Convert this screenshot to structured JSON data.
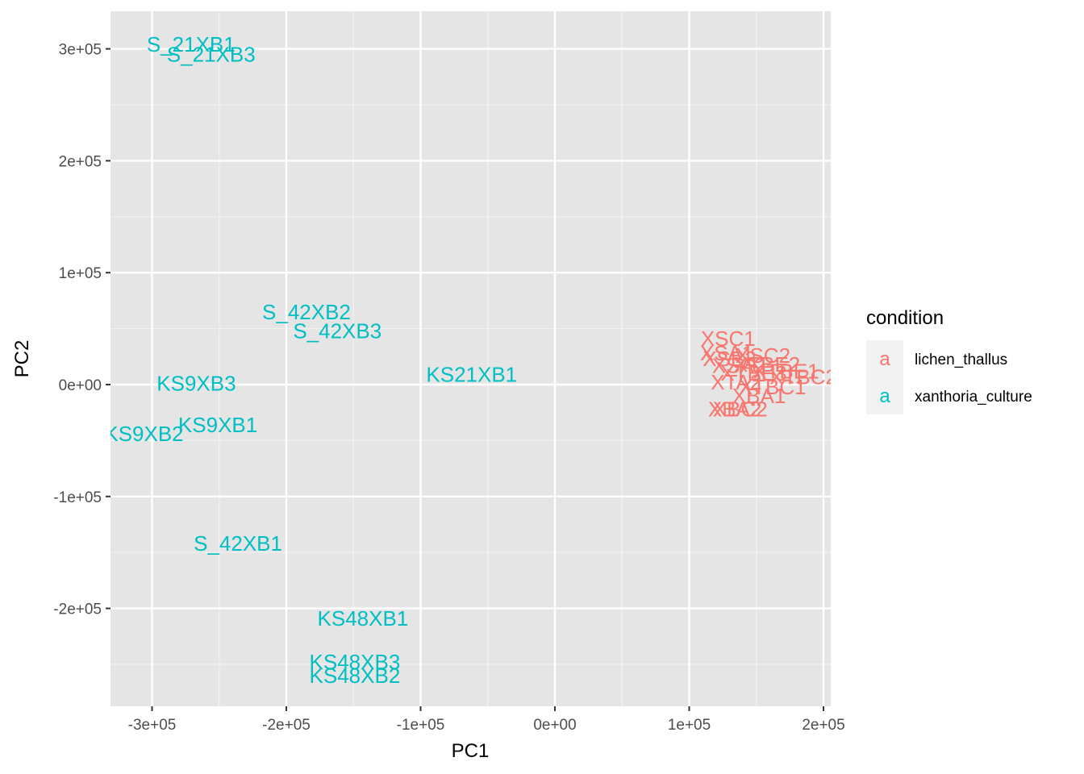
{
  "chart_data": {
    "type": "scatter",
    "title": "",
    "xlabel": "PC1",
    "ylabel": "PC2",
    "xlim": [
      -332000,
      1010000
    ],
    "ylim": [
      -287000,
      330000
    ],
    "x_ticks": [
      {
        "value": -300000,
        "label": "-3e+05"
      },
      {
        "value": -200000,
        "label": "-2e+05"
      },
      {
        "value": -100000,
        "label": "-1e+05"
      },
      {
        "value": 0,
        "label": "0e+00"
      },
      {
        "value": 100000,
        "label": "1e+05"
      },
      {
        "value": 200000,
        "label": "2e+05"
      }
    ],
    "y_ticks": [
      {
        "value": 300000,
        "label": "3e+05"
      },
      {
        "value": 200000,
        "label": "2e+05"
      },
      {
        "value": 100000,
        "label": "1e+05"
      },
      {
        "value": 0,
        "label": "0e+00"
      },
      {
        "value": -100000,
        "label": "-1e+05"
      },
      {
        "value": -200000,
        "label": "-2e+05"
      }
    ],
    "grid": true,
    "legend": {
      "title": "condition",
      "placement": "right",
      "glyph": "a",
      "entries": [
        {
          "name": "lichen_thallus",
          "color": "#F8766D"
        },
        {
          "name": "xanthoria_culture",
          "color": "#00BFC4"
        }
      ]
    },
    "series": [
      {
        "name": "xanthoria_culture",
        "color": "#00BFC4",
        "points": [
          {
            "label": "S_21XB1",
            "x": -271000,
            "y": 304000
          },
          {
            "label": "S_21XB3",
            "x": -256000,
            "y": 295000
          },
          {
            "label": "S_42XB2",
            "x": -185000,
            "y": 65000
          },
          {
            "label": "S_42XB3",
            "x": -162000,
            "y": 48000
          },
          {
            "label": "KS21XB1",
            "x": -62000,
            "y": 9000
          },
          {
            "label": "KS9XB3",
            "x": -267000,
            "y": 1000
          },
          {
            "label": "KS9XB1",
            "x": -251000,
            "y": -36000
          },
          {
            "label": "KS9XB2",
            "x": -306000,
            "y": -44000
          },
          {
            "label": "S_42XB1",
            "x": -236000,
            "y": -142000
          },
          {
            "label": "KS48XB1",
            "x": -143000,
            "y": -209000
          },
          {
            "label": "KS48XB3",
            "x": -149000,
            "y": -248000
          },
          {
            "label": "KS48XB2",
            "x": -149000,
            "y": -260000
          }
        ]
      },
      {
        "name": "lichen_thallus",
        "color": "#F8766D",
        "points": [
          {
            "label": "XSC1",
            "x": 129000,
            "y": 41000
          },
          {
            "label": "XSA1",
            "x": 128000,
            "y": 28000
          },
          {
            "label": "XSC2",
            "x": 155000,
            "y": 26000
          },
          {
            "label": "XSB2",
            "x": 130000,
            "y": 23000
          },
          {
            "label": "XSA2",
            "x": 137000,
            "y": 17000
          },
          {
            "label": "XTBE2",
            "x": 158000,
            "y": 18000
          },
          {
            "label": "XTBE1",
            "x": 172000,
            "y": 12000
          },
          {
            "label": "XTBE3",
            "x": 148000,
            "y": 10000
          },
          {
            "label": "XTBC2",
            "x": 185000,
            "y": 7000
          },
          {
            "label": "XTA2",
            "x": 135000,
            "y": 2000
          },
          {
            "label": "XTBC1",
            "x": 162000,
            "y": -2000
          },
          {
            "label": "XBA1",
            "x": 152000,
            "y": -10000
          },
          {
            "label": "XBC2",
            "x": 138000,
            "y": -22000
          },
          {
            "label": "XBA2",
            "x": 134000,
            "y": -22000
          }
        ]
      }
    ]
  }
}
